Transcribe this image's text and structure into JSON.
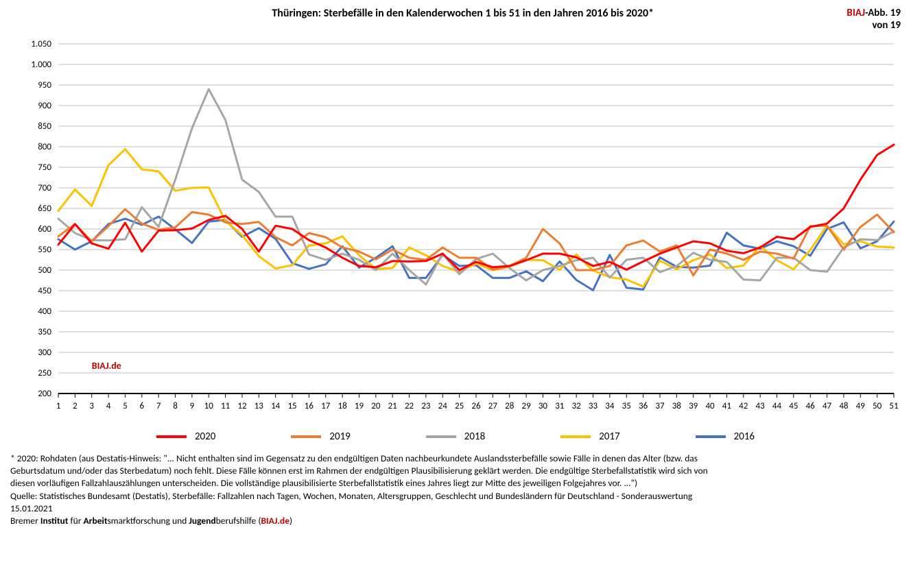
{
  "title": "Thüringen: Sterbefälle in den Kalenderwochen 1 bis 51 in den Jahren 2016 bis 2020*",
  "fig_label_red": "BIAJ",
  "fig_label_rest": "-Abb. 19",
  "fig_label_line2": "von 19",
  "watermark": "BIAJ.de",
  "chart": {
    "type": "line",
    "background_color": "#ffffff",
    "grid_color": "#bfbfbf",
    "axis_color": "#000000",
    "line_width": 3,
    "font_size_axis": 13,
    "ylim": [
      200,
      1050
    ],
    "ytick_step": 50,
    "xlim": [
      1,
      51
    ],
    "xticks": [
      1,
      2,
      3,
      4,
      5,
      6,
      7,
      8,
      9,
      10,
      11,
      12,
      13,
      14,
      15,
      16,
      17,
      18,
      19,
      20,
      21,
      22,
      23,
      24,
      25,
      26,
      27,
      28,
      29,
      30,
      31,
      32,
      33,
      34,
      35,
      36,
      37,
      38,
      39,
      40,
      41,
      42,
      43,
      44,
      45,
      46,
      47,
      48,
      49,
      50,
      51
    ],
    "series": [
      {
        "name": "2020",
        "color": "#ff0000",
        "values": [
          562,
          612,
          565,
          552,
          615,
          545,
          596,
          597,
          601,
          622,
          632,
          600,
          545,
          608,
          600,
          573,
          555,
          530,
          510,
          507,
          522,
          521,
          522,
          540,
          500,
          520,
          507,
          510,
          524,
          540,
          540,
          531,
          510,
          520,
          501,
          521,
          540,
          555,
          570,
          565,
          547,
          541,
          555,
          581,
          575,
          605,
          613,
          650,
          720,
          780,
          805
        ]
      },
      {
        "name": "2019",
        "color": "#ed7d31",
        "values": [
          582,
          612,
          570,
          607,
          648,
          613,
          598,
          604,
          641,
          635,
          616,
          612,
          617,
          580,
          560,
          590,
          580,
          555,
          545,
          526,
          550,
          530,
          525,
          555,
          530,
          530,
          501,
          510,
          530,
          600,
          565,
          500,
          500,
          510,
          560,
          572,
          545,
          560,
          487,
          550,
          540,
          525,
          545,
          540,
          528,
          607,
          608,
          550,
          605,
          635,
          592
        ]
      },
      {
        "name": "2018",
        "color": "#a6a6a6",
        "values": [
          625,
          590,
          573,
          572,
          575,
          653,
          605,
          720,
          845,
          940,
          865,
          720,
          690,
          630,
          630,
          538,
          525,
          540,
          525,
          500,
          540,
          500,
          465,
          540,
          490,
          527,
          540,
          505,
          475,
          500,
          510,
          524,
          530,
          482,
          525,
          530,
          495,
          510,
          542,
          525,
          520,
          477,
          475,
          530,
          530,
          500,
          496,
          555,
          575,
          573,
          594
        ]
      },
      {
        "name": "2017",
        "color": "#ffc000",
        "values": [
          644,
          696,
          656,
          755,
          794,
          745,
          740,
          693,
          700,
          701,
          620,
          585,
          534,
          504,
          512,
          560,
          565,
          582,
          536,
          503,
          505,
          555,
          536,
          510,
          496,
          516,
          500,
          508,
          525,
          524,
          501,
          538,
          499,
          483,
          477,
          460,
          523,
          502,
          524,
          538,
          505,
          511,
          558,
          524,
          502,
          549,
          608,
          563,
          570,
          557,
          555
        ]
      },
      {
        "name": "2016",
        "color": "#4472c4",
        "values": [
          575,
          550,
          570,
          612,
          625,
          610,
          630,
          599,
          566,
          618,
          622,
          581,
          602,
          576,
          517,
          503,
          514,
          558,
          506,
          530,
          558,
          481,
          481,
          537,
          510,
          512,
          481,
          481,
          497,
          473,
          521,
          476,
          451,
          537,
          457,
          453,
          531,
          508,
          506,
          511,
          591,
          560,
          552,
          570,
          558,
          535,
          600,
          616,
          553,
          570,
          618
        ]
      }
    ]
  },
  "legend": [
    {
      "label": "2020",
      "color": "#ff0000"
    },
    {
      "label": "2019",
      "color": "#ed7d31"
    },
    {
      "label": "2018",
      "color": "#a6a6a6"
    },
    {
      "label": "2017",
      "color": "#ffc000"
    },
    {
      "label": "2016",
      "color": "#4472c4"
    }
  ],
  "footnote_line1": "* 2020: Rohdaten (aus Destatis-Hinweis: \"... Nicht enthalten sind im Gegensatz zu den endgültigen Daten nachbeurkundete Auslandssterbefälle sowie Fälle in denen das Alter (bzw. das",
  "footnote_line2": "Geburtsdatum und/oder das Sterbedatum) noch fehlt. Diese Fälle können erst im Rahmen der endgültigen Plausibilisierung geklärt werden. Die endgültige Sterbefallstatistik wird sich von",
  "footnote_line3": "diesen vorläufigen Fallzahlauszählungen unterscheiden. Die vollständige plausibilisierte Sterbefallstatistik eines Jahres liegt zur Mitte des jeweiligen Folgejahres vor. ...\")",
  "footnote_line4": "Quelle: Statistisches Bundesamt (Destatis), Sterbefälle: Fallzahlen nach Tagen, Wochen, Monaten, Altersgruppen, Geschlecht und Bundesländern für Deutschland - Sonderauswertung",
  "footnote_line5": "15.01.2021",
  "footnote_line6_a": "Bremer ",
  "footnote_line6_b": "Institut",
  "footnote_line6_c": " für ",
  "footnote_line6_d": "Arbeit",
  "footnote_line6_e": "smarktforschung und ",
  "footnote_line6_f": "Jugend",
  "footnote_line6_g": "berufshilfe (",
  "footnote_line6_h": "BIAJ.de",
  "footnote_line6_i": ")"
}
